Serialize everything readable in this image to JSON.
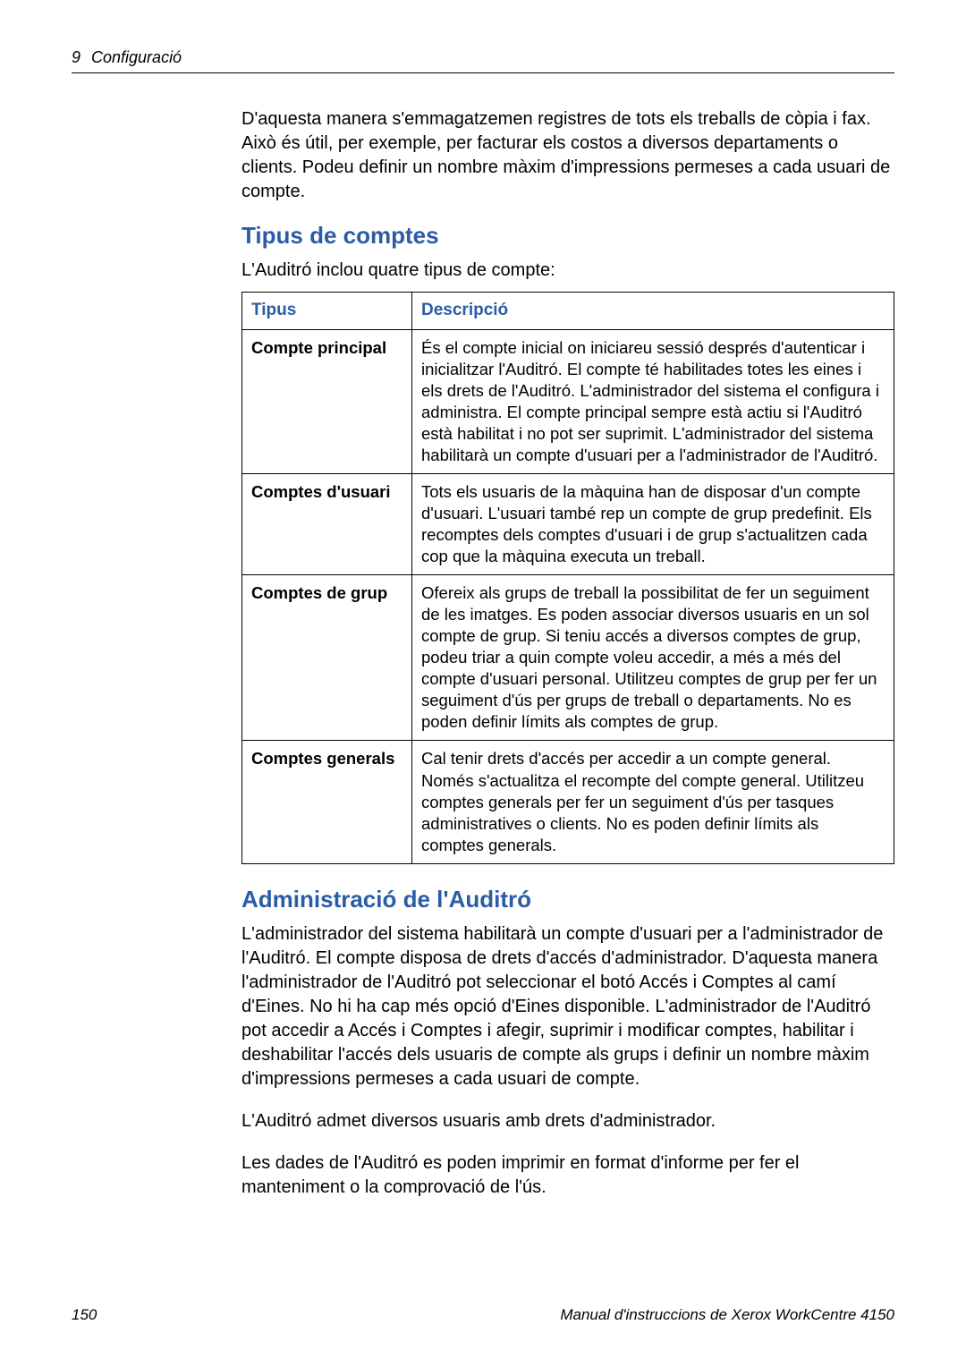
{
  "header": {
    "chapter_num": "9",
    "chapter_title": "Configuració"
  },
  "intro_paragraph": "D'aquesta manera s'emmagatzemen registres de tots els treballs de còpia i fax. Això és útil, per exemple, per facturar els costos a diversos departaments o clients. Podeu definir un nombre màxim d'impressions permeses a cada usuari de compte.",
  "section1": {
    "heading": "Tipus de comptes",
    "intro": "L'Auditró inclou quatre tipus de compte:",
    "table": {
      "col1": "Tipus",
      "col2": "Descripció",
      "rows": [
        {
          "type": "Compte principal",
          "desc": "És el compte inicial on iniciareu sessió després d'autenticar i inicialitzar l'Auditró. El compte té habilitades totes les eines i els drets de l'Auditró. L'administrador del sistema el configura i administra. El compte principal sempre està actiu si l'Auditró està habilitat i no pot ser suprimit. L'administrador del sistema habilitarà un compte d'usuari per a l'administrador de l'Auditró."
        },
        {
          "type": "Comptes d'usuari",
          "desc": "Tots els usuaris de la màquina han de disposar d'un compte d'usuari. L'usuari també rep un compte de grup predefinit. Els recomptes dels comptes d'usuari i de grup s'actualitzen cada cop que la màquina executa un treball."
        },
        {
          "type": "Comptes de grup",
          "desc": "Ofereix als grups de treball la possibilitat de fer un seguiment de les imatges. Es poden associar diversos usuaris en un sol compte de grup. Si teniu accés a diversos comptes de grup, podeu triar a quin compte voleu accedir, a més a més del compte d'usuari personal. Utilitzeu comptes de grup per fer un seguiment d'ús per grups de treball o departaments. No es poden definir límits als comptes de grup."
        },
        {
          "type": "Comptes generals",
          "desc": "Cal tenir drets d'accés per accedir a un compte general. Només s'actualitza el recompte del compte general. Utilitzeu comptes generals per fer un seguiment d'ús per tasques administratives o clients. No es poden definir límits als comptes generals."
        }
      ]
    }
  },
  "section2": {
    "heading": "Administració de l'Auditró",
    "p1": "L'administrador del sistema habilitarà un compte d'usuari per a l'administrador de l'Auditró. El compte disposa de drets d'accés d'administrador. D'aquesta manera l'administrador de l'Auditró pot seleccionar el botó Accés i Comptes al camí d'Eines. No hi ha cap més opció d'Eines disponible. L'administrador de l'Auditró pot accedir a Accés i Comptes i afegir, suprimir i modificar comptes, habilitar i deshabilitar l'accés dels usuaris de compte als grups i definir un nombre màxim d'impressions permeses a cada usuari de compte.",
    "p2": "L'Auditró admet diversos usuaris amb drets d'administrador.",
    "p3": "Les dades de l'Auditró es poden imprimir en format d'informe per fer el manteniment o la comprovació de l'ús."
  },
  "footer": {
    "page_num": "150",
    "doc_title": "Manual d'instruccions de  Xerox WorkCentre 4150"
  },
  "colors": {
    "heading": "#2b5ca6",
    "text": "#000000",
    "background": "#ffffff"
  }
}
